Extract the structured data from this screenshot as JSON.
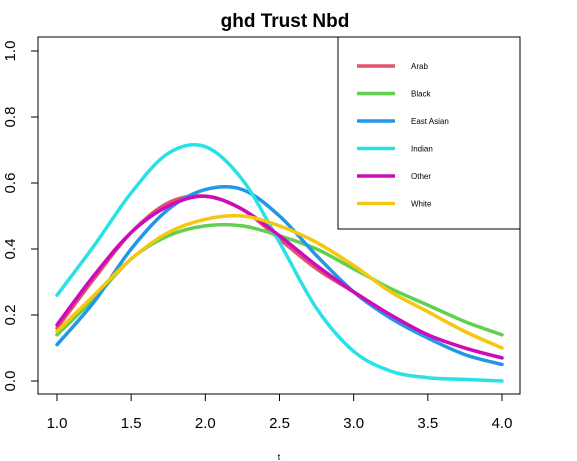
{
  "chart_data": {
    "type": "line",
    "title": "ghd Trust Nbd",
    "xlabel": "t",
    "ylabel": "",
    "xlim": [
      1.0,
      4.0
    ],
    "ylim": [
      0.0,
      1.0
    ],
    "xticks": [
      "1.0",
      "1.5",
      "2.0",
      "2.5",
      "3.0",
      "3.5",
      "4.0"
    ],
    "yticks": [
      "0.0",
      "0.2",
      "0.4",
      "0.6",
      "0.8",
      "1.0"
    ],
    "legend_position": "top-right",
    "x": [
      1.0,
      1.25,
      1.5,
      1.75,
      2.0,
      2.25,
      2.5,
      2.75,
      3.0,
      3.25,
      3.5,
      3.75,
      4.0
    ],
    "series": [
      {
        "name": "Arab",
        "color": "#DF536B",
        "values": [
          0.16,
          0.31,
          0.45,
          0.54,
          0.56,
          0.52,
          0.43,
          0.34,
          0.27,
          0.2,
          0.14,
          0.1,
          0.07
        ]
      },
      {
        "name": "Black",
        "color": "#61D04F",
        "values": [
          0.14,
          0.25,
          0.37,
          0.44,
          0.47,
          0.47,
          0.44,
          0.4,
          0.34,
          0.28,
          0.23,
          0.18,
          0.14
        ]
      },
      {
        "name": "East Asian",
        "color": "#2297E6",
        "values": [
          0.11,
          0.24,
          0.4,
          0.52,
          0.58,
          0.58,
          0.5,
          0.38,
          0.27,
          0.19,
          0.13,
          0.08,
          0.05
        ]
      },
      {
        "name": "Indian",
        "color": "#28E2E5",
        "values": [
          0.26,
          0.41,
          0.57,
          0.69,
          0.71,
          0.61,
          0.42,
          0.22,
          0.09,
          0.03,
          0.01,
          0.005,
          0.0
        ]
      },
      {
        "name": "Other",
        "color": "#CD0BBC",
        "values": [
          0.17,
          0.32,
          0.45,
          0.53,
          0.56,
          0.52,
          0.44,
          0.35,
          0.27,
          0.2,
          0.14,
          0.1,
          0.07
        ]
      },
      {
        "name": "White",
        "color": "#F5C710",
        "values": [
          0.15,
          0.26,
          0.37,
          0.45,
          0.49,
          0.5,
          0.47,
          0.42,
          0.35,
          0.27,
          0.21,
          0.15,
          0.1
        ]
      }
    ]
  }
}
